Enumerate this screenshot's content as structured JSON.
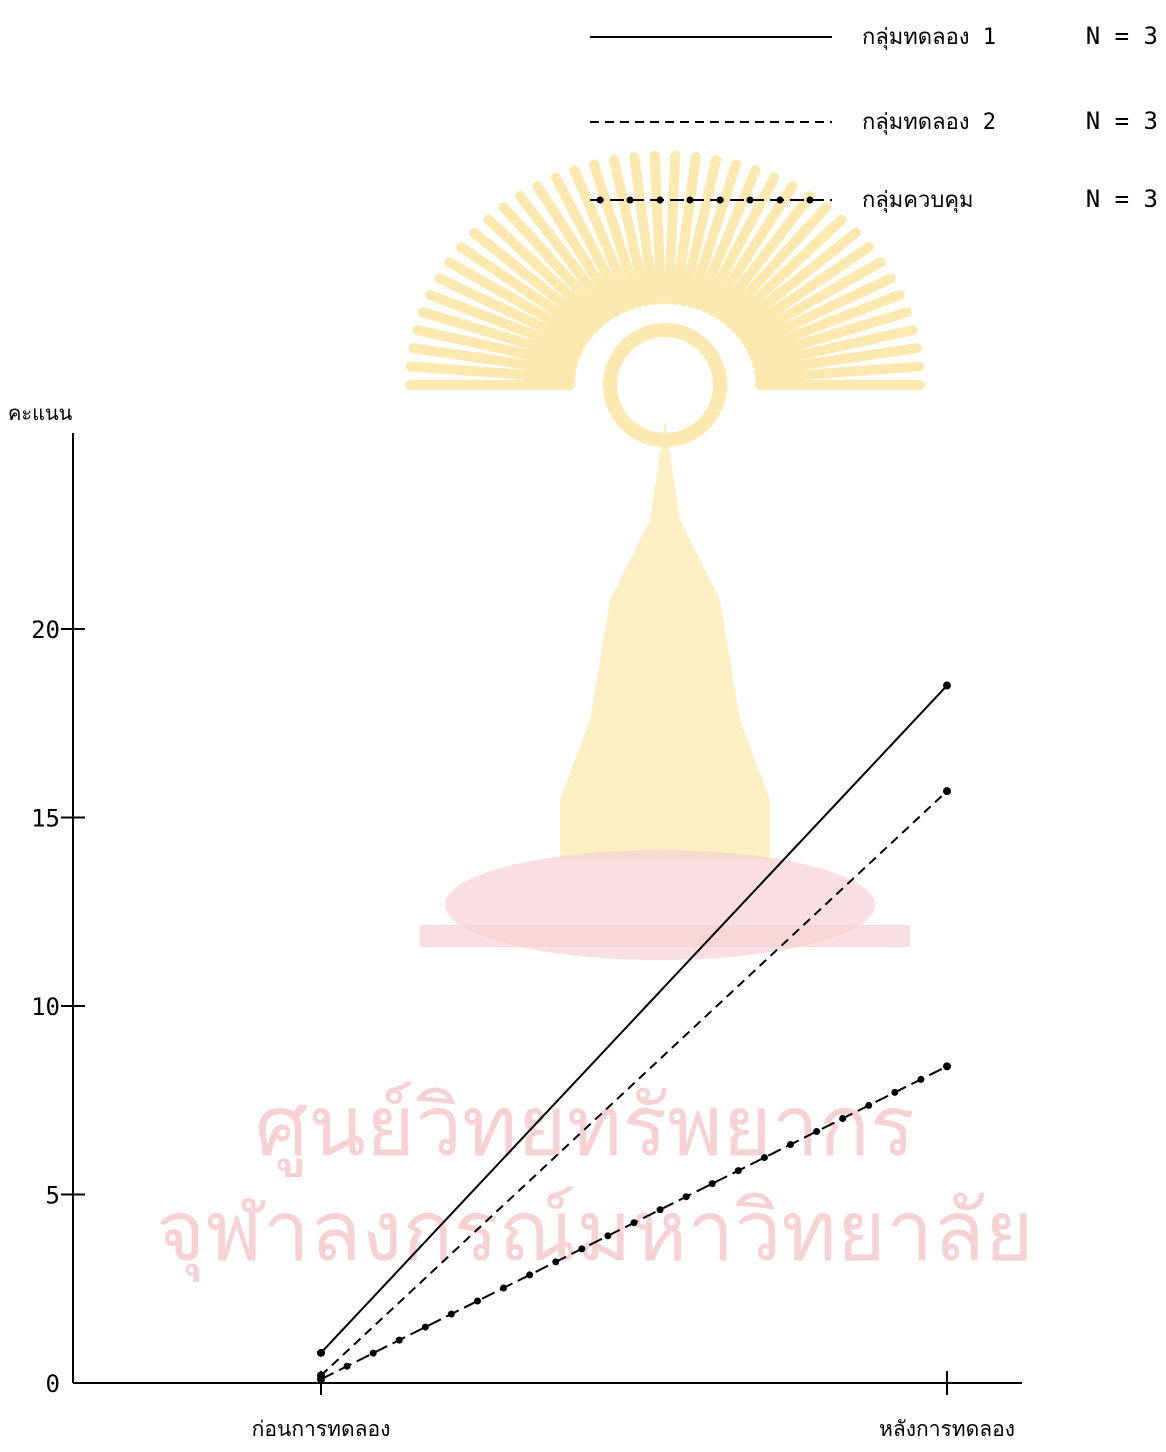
{
  "chart_data": {
    "type": "line",
    "ylabel": "คะแนน",
    "categories": [
      "ก่อนการทดลอง",
      "หลังการทดลอง"
    ],
    "yticks": [
      0,
      5,
      10,
      15,
      20
    ],
    "ylim": [
      0,
      25
    ],
    "grid": false,
    "legend_position": "top-right",
    "series": [
      {
        "name": "กลุ่มทดลอง 1",
        "n_label": "N = 3",
        "style": "solid",
        "values": [
          0.8,
          18.5
        ]
      },
      {
        "name": "กลุ่มทดลอง 2",
        "n_label": "N = 3",
        "style": "dashed",
        "values": [
          0.2,
          15.7
        ]
      },
      {
        "name": "กลุ่มควบคุม",
        "n_label": "N = 3",
        "style": "dash-dot-markers",
        "values": [
          0.1,
          8.4
        ]
      }
    ]
  },
  "watermark": {
    "line1": "ศูนย์วิทยทรัพยากร",
    "line2": "จุฬาลงกรณ์มหาวิทยาลัย",
    "color": "#f7d2d4",
    "emblem_color": "#fbe9b0"
  },
  "colors": {
    "ink": "#000000",
    "background": "#ffffff"
  }
}
